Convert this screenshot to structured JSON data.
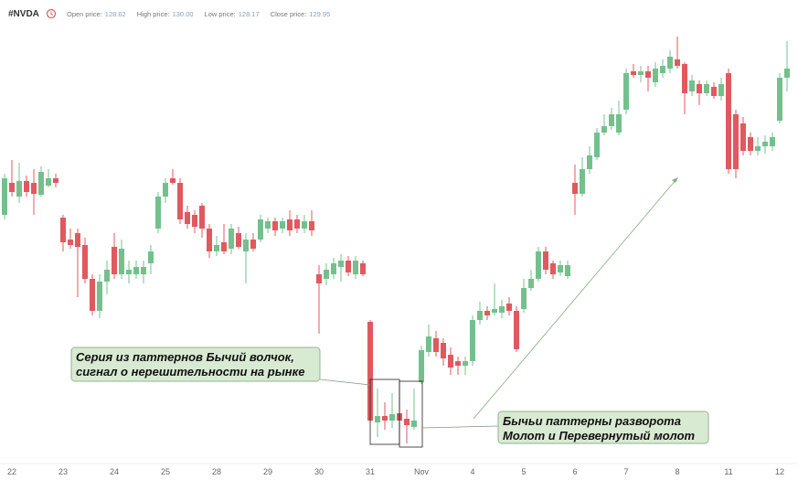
{
  "header": {
    "symbol": "#NVDA",
    "fields": [
      {
        "label": "Open price:",
        "value": "128.62"
      },
      {
        "label": "High price:",
        "value": "130.00"
      },
      {
        "label": "Low price:",
        "value": "128.17"
      },
      {
        "label": "Close price:",
        "value": "129.95"
      }
    ]
  },
  "chart_data": {
    "type": "candlestick",
    "up_color": "#74c08d",
    "down_color": "#e0595f",
    "ylim": [
      120,
      146
    ],
    "categories": [
      null,
      "22",
      null,
      null,
      null,
      null,
      null,
      null,
      "23",
      null,
      null,
      null,
      null,
      null,
      null,
      "24",
      null,
      null,
      null,
      null,
      null,
      null,
      "25",
      null,
      null,
      null,
      null,
      null,
      null,
      "28",
      null,
      null,
      null,
      null,
      null,
      null,
      "29",
      null,
      null,
      null,
      null,
      null,
      null,
      "30",
      null,
      null,
      null,
      null,
      null,
      null,
      "31",
      null,
      null,
      null,
      null,
      null,
      null,
      "Nov",
      null,
      null,
      null,
      null,
      null,
      null,
      "4",
      null,
      null,
      null,
      null,
      null,
      null,
      "5",
      null,
      null,
      null,
      null,
      null,
      null,
      "6",
      null,
      null,
      null,
      null,
      null,
      null,
      "7",
      null,
      null,
      null,
      null,
      null,
      null,
      "8",
      null,
      null,
      null,
      null,
      null,
      null,
      "11",
      null,
      null,
      null,
      null,
      null,
      null,
      "12",
      null
    ],
    "open": [
      134.25,
      136,
      135.25,
      136.1,
      136,
      135.35,
      135.85,
      136.25,
      134.1,
      132.9,
      133.25,
      132.6,
      130.75,
      129,
      130.6,
      132.5,
      131,
      131,
      131,
      131,
      131.6,
      133.5,
      135.25,
      136.25,
      136,
      134.4,
      134.25,
      134.75,
      133.5,
      132.25,
      132.75,
      132.4,
      133.25,
      132.25,
      132.9,
      132.9,
      133.5,
      133.9,
      133.5,
      134,
      134,
      133.5,
      133.9,
      131,
      130.75,
      131,
      131.4,
      131.75,
      131,
      131.6,
      128.4,
      122.9,
      123.25,
      123,
      123.4,
      123.1,
      122.65,
      125.1,
      126.75,
      127.5,
      127.25,
      126.6,
      126.25,
      126,
      126.25,
      128.5,
      129,
      128.9,
      128.9,
      129.4,
      129,
      129.1,
      130.25,
      130.75,
      132.25,
      131.6,
      131.1,
      130.9,
      136,
      135.4,
      136.75,
      137.4,
      138.75,
      139.1,
      138.75,
      140,
      142.1,
      141.9,
      142.1,
      141.5,
      142,
      142.25,
      142.75,
      142.5,
      141,
      141.4,
      140.9,
      141.25,
      140.75,
      142,
      139.75,
      139.25,
      138.5,
      137.75,
      138,
      138,
      139.4,
      141.75
    ],
    "high": [
      136.5,
      137.25,
      137.1,
      136.4,
      136.75,
      136.9,
      136.75,
      136.5,
      134.25,
      133.5,
      133.5,
      133,
      131,
      131,
      131.75,
      133.25,
      132.9,
      131.75,
      131.75,
      131.75,
      132.6,
      135.5,
      136.25,
      136.75,
      136.25,
      134.75,
      134.5,
      134.9,
      133.75,
      133.1,
      133.75,
      133.75,
      133.6,
      133.25,
      133.25,
      134.25,
      134.1,
      134.1,
      134.1,
      134.5,
      134.25,
      134.25,
      134.5,
      131.5,
      131.6,
      131.9,
      132.1,
      132,
      132,
      131.75,
      128.5,
      124.75,
      124,
      124.5,
      123.9,
      123.6,
      124.75,
      127.1,
      128.25,
      127.9,
      127.5,
      127,
      126.5,
      126.5,
      128.75,
      129.5,
      129.25,
      130.5,
      129.6,
      129.75,
      129.25,
      130.75,
      131.25,
      132.5,
      132.5,
      131.75,
      131.75,
      131.75,
      137,
      137.4,
      138,
      139,
      139.75,
      140.1,
      140.5,
      142.25,
      142.5,
      142.4,
      142.4,
      142.6,
      142.75,
      143.25,
      144,
      142.6,
      141.9,
      141.6,
      141.6,
      141.5,
      141.75,
      142.25,
      140,
      139.6,
      138.75,
      138.5,
      138.6,
      138.75,
      142,
      143.75
    ],
    "low": [
      134,
      135.25,
      134.9,
      135.25,
      134.25,
      135.25,
      135.75,
      135.75,
      132.25,
      132.4,
      129.75,
      130.5,
      128.75,
      128.6,
      129.9,
      130.75,
      130.75,
      130.5,
      130.75,
      130.5,
      131,
      133.25,
      134.9,
      135.9,
      133.75,
      133.5,
      133.25,
      133,
      131.9,
      132,
      132.1,
      132.1,
      132.4,
      130.5,
      132.25,
      132.75,
      133.25,
      133.1,
      133.25,
      133.1,
      133.25,
      133.25,
      133.1,
      127.75,
      130.4,
      130.75,
      130.6,
      130.9,
      130.75,
      130.9,
      122.9,
      122.1,
      122.5,
      122.6,
      122.5,
      121.75,
      122.5,
      125,
      126.5,
      126.5,
      126,
      125.5,
      125.5,
      125.5,
      126,
      128.25,
      128.5,
      128.75,
      128.6,
      128.75,
      126.75,
      128.9,
      130.1,
      130.6,
      131,
      130.75,
      130.9,
      130.75,
      134.25,
      135.25,
      136.5,
      137.25,
      138.6,
      138.9,
      138.6,
      139.75,
      141.75,
      141.5,
      141,
      141.25,
      141.75,
      142,
      142.25,
      139.75,
      140.75,
      140.25,
      140.75,
      140.6,
      140.5,
      136.5,
      136.25,
      137.5,
      137.5,
      137.5,
      137.6,
      137.75,
      139.25,
      141
    ],
    "close": [
      136.25,
      135.5,
      136.1,
      135.5,
      135.4,
      136.6,
      136.25,
      136,
      132.75,
      132.6,
      132.5,
      130.75,
      129,
      130.6,
      131.25,
      131,
      132.4,
      131.25,
      131.4,
      131.4,
      132.25,
      135.25,
      136,
      136,
      134,
      133.75,
      133.6,
      133.5,
      132.25,
      132.6,
      132.25,
      133.5,
      132.5,
      132.9,
      132.4,
      134,
      133.9,
      133.4,
      133.9,
      133.4,
      133.5,
      133.9,
      133.4,
      130.5,
      131.25,
      131.6,
      131.75,
      131.1,
      131.75,
      131,
      123,
      123.25,
      123,
      123.35,
      123,
      122.75,
      123,
      126.85,
      127.6,
      126.75,
      126.4,
      125.9,
      126,
      126.25,
      128.5,
      129,
      128.75,
      129.1,
      129.25,
      129,
      126.9,
      130.25,
      130.75,
      132.25,
      131.25,
      131,
      131.5,
      131.5,
      135.4,
      136.75,
      137.5,
      138.75,
      139.1,
      139.75,
      139.75,
      142,
      141.9,
      142.1,
      141.75,
      142.25,
      142.4,
      142.9,
      142.4,
      140.9,
      141.6,
      140.9,
      141.4,
      140.75,
      141.4,
      136.75,
      136.75,
      137.75,
      137.75,
      138,
      138.25,
      138.5,
      141.75,
      142.25
    ],
    "annotations": [
      {
        "lines": [
          "Серия из паттернов Бычий волчок,",
          "сигнал о нерешительности на рынке"
        ]
      },
      {
        "lines": [
          "Бычьи паттерны разворота",
          "Молот и Перевернутый молот"
        ]
      }
    ]
  }
}
